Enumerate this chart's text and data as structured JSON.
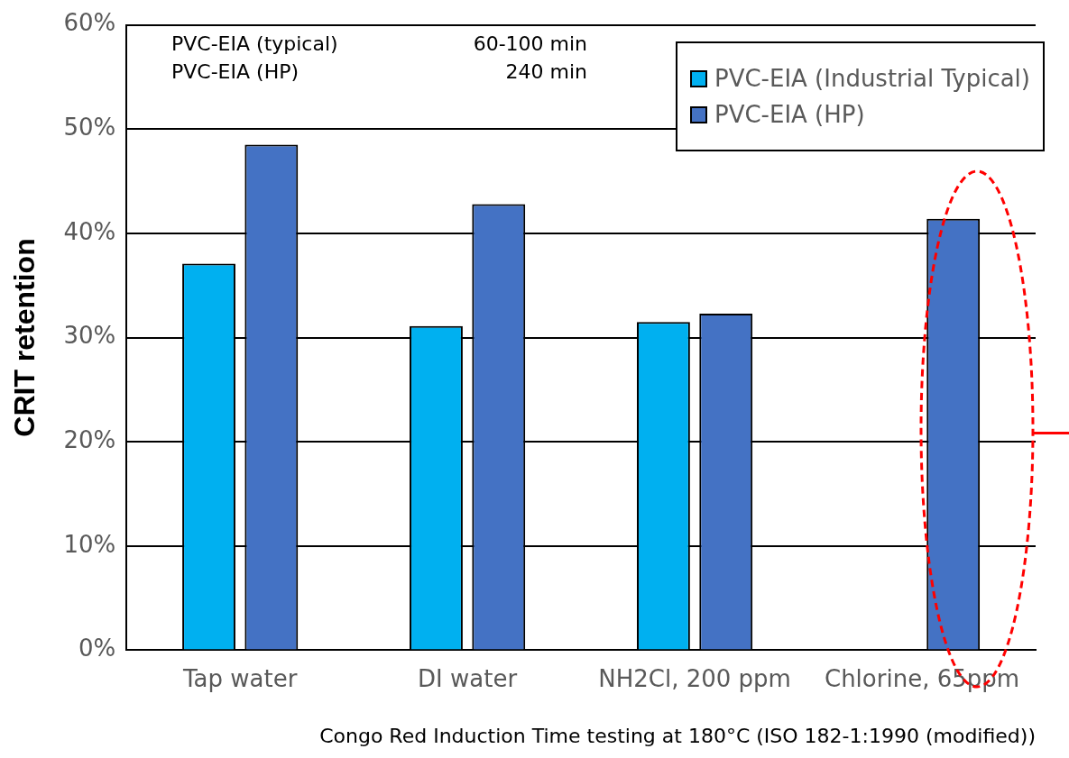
{
  "chart_data": {
    "type": "bar",
    "xlabel": "Congo Red Induction Time testing at 180°C (ISO 182-1:1990 (modified))",
    "ylabel": "CRIT retention",
    "categories": [
      "Tap water",
      "DI water",
      "NH2Cl, 200 ppm",
      "Chlorine, 65ppm"
    ],
    "series": [
      {
        "name": "PVC-EIA (Industrial Typical)",
        "color": "#00b0f0",
        "values": [
          37.1,
          31.1,
          31.5,
          null
        ]
      },
      {
        "name": "PVC-EIA (HP)",
        "color": "#4472c4",
        "values": [
          48.5,
          42.8,
          32.3,
          41.4
        ]
      }
    ],
    "ylim": [
      0,
      60
    ],
    "yticks": [
      {
        "value": 0,
        "label": "0%"
      },
      {
        "value": 10,
        "label": "10%"
      },
      {
        "value": 20,
        "label": "20%"
      },
      {
        "value": 30,
        "label": "30%"
      },
      {
        "value": 40,
        "label": "40%"
      },
      {
        "value": 50,
        "label": "50%"
      },
      {
        "value": 60,
        "label": "60%"
      }
    ],
    "annotations": [
      "PVC-EIA (typical)",
      "60-100 min",
      "PVC-EIA (HP)",
      "240 min"
    ],
    "grid": "y",
    "legend": "top right"
  }
}
